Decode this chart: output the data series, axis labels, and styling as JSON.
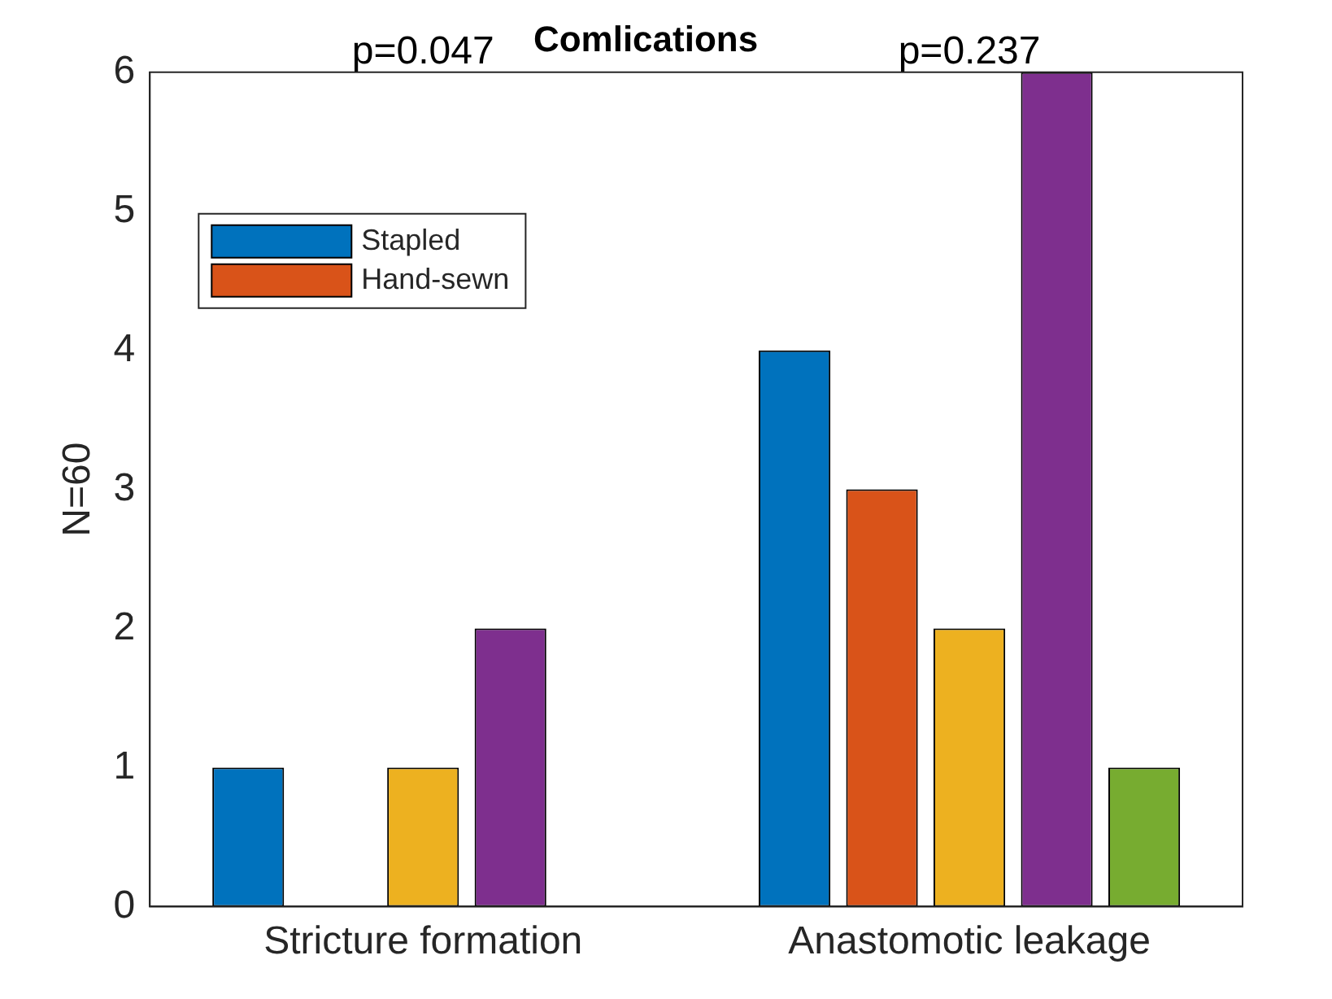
{
  "chart_data": {
    "type": "bar",
    "title": "Comlications",
    "ylabel": "N=60",
    "categories": [
      "Stricture formation",
      "Anastomotic leakage"
    ],
    "series": [
      {
        "name": "Stapled",
        "color": "#0072bd",
        "values": [
          1,
          4
        ]
      },
      {
        "name": "Hand-sewn",
        "color": "#d95319",
        "values": [
          0,
          3
        ]
      },
      {
        "color": "#edb120",
        "values": [
          1,
          2
        ]
      },
      {
        "color": "#7e2f8e",
        "values": [
          2,
          6
        ]
      },
      {
        "color": "#77ac30",
        "values": [
          0,
          1
        ]
      }
    ],
    "annotations": [
      "p=0.047",
      "p=0.237"
    ],
    "ylim": [
      0,
      6
    ],
    "yticks": [
      0,
      1,
      2,
      3,
      4,
      5,
      6
    ],
    "grid": false,
    "legend": "top left"
  }
}
